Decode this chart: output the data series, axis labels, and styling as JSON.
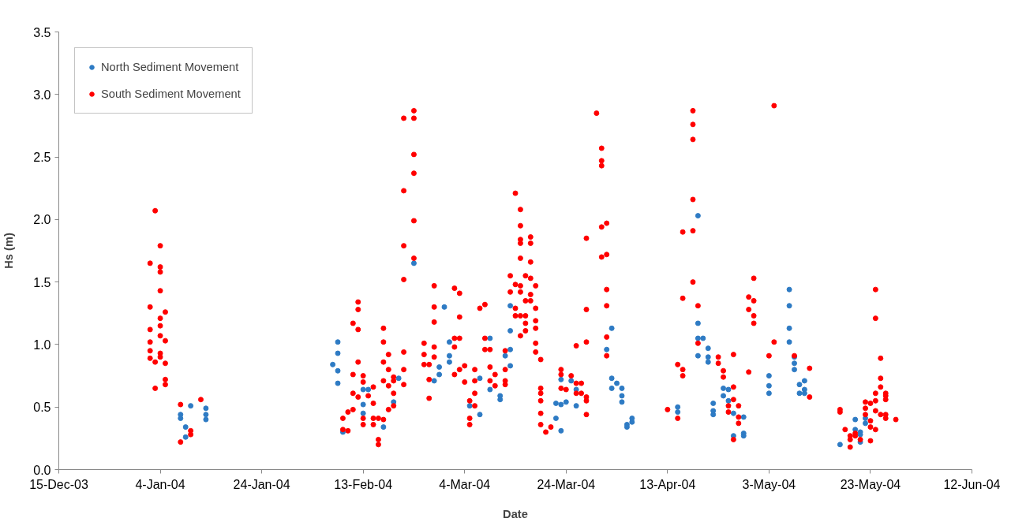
{
  "chart_data": {
    "type": "scatter",
    "xlabel": "Date",
    "ylabel": "Hs (m)",
    "xlim": [
      "2003-12-15",
      "2004-06-12"
    ],
    "xticks": [
      {
        "value": "2003-12-15",
        "label": "15-Dec-03"
      },
      {
        "value": "2004-01-04",
        "label": "4-Jan-04"
      },
      {
        "value": "2004-01-24",
        "label": "24-Jan-04"
      },
      {
        "value": "2004-02-13",
        "label": "13-Feb-04"
      },
      {
        "value": "2004-03-04",
        "label": "4-Mar-04"
      },
      {
        "value": "2004-03-24",
        "label": "24-Mar-04"
      },
      {
        "value": "2004-04-13",
        "label": "13-Apr-04"
      },
      {
        "value": "2004-05-03",
        "label": "3-May-04"
      },
      {
        "value": "2004-05-23",
        "label": "23-May-04"
      },
      {
        "value": "2004-06-12",
        "label": "12-Jun-04"
      }
    ],
    "ylim": [
      0,
      3.5
    ],
    "yticks": [
      {
        "value": 0,
        "label": "0.0"
      },
      {
        "value": 0.5,
        "label": "0.5"
      },
      {
        "value": 1,
        "label": "1.0"
      },
      {
        "value": 1.5,
        "label": "1.5"
      },
      {
        "value": 2,
        "label": "2.0"
      },
      {
        "value": 2.5,
        "label": "2.5"
      },
      {
        "value": 3,
        "label": "3.0"
      },
      {
        "value": 3.5,
        "label": "3.5"
      }
    ],
    "grid": false,
    "legend": "top left",
    "marker": "circle",
    "series": [
      {
        "name": "North Sediment Movement",
        "color": "#2e7bc4",
        "x": [
          "2004-01-10",
          "2004-01-08",
          "2004-01-08",
          "2004-01-09",
          "2004-01-09",
          "2004-01-13",
          "2004-01-13",
          "2004-01-13",
          "2004-02-08",
          "2004-02-08",
          "2004-02-07",
          "2004-02-08",
          "2004-02-08",
          "2004-02-09",
          "2004-02-13",
          "2004-02-14",
          "2004-02-13",
          "2004-02-13",
          "2004-02-17",
          "2004-02-19",
          "2004-02-20",
          "2004-02-23",
          "2004-02-28",
          "2004-02-28",
          "2004-02-27",
          "2004-02-29",
          "2004-03-01",
          "2004-03-01",
          "2004-03-01",
          "2004-03-07",
          "2004-03-05",
          "2004-03-07",
          "2004-03-09",
          "2004-03-09",
          "2004-03-11",
          "2004-03-11",
          "2004-03-13",
          "2004-03-12",
          "2004-03-13",
          "2004-03-13",
          "2004-03-13",
          "2004-03-22",
          "2004-03-23",
          "2004-03-24",
          "2004-03-22",
          "2004-03-23",
          "2004-03-23",
          "2004-03-25",
          "2004-03-26",
          "2004-03-26",
          "2004-04-02",
          "2004-04-01",
          "2004-04-02",
          "2004-04-02",
          "2004-04-03",
          "2004-04-04",
          "2004-04-04",
          "2004-04-04",
          "2004-04-05",
          "2004-04-06",
          "2004-04-06",
          "2004-04-05",
          "2004-04-19",
          "2004-04-19",
          "2004-04-19",
          "2004-04-20",
          "2004-04-19",
          "2004-04-21",
          "2004-04-21",
          "2004-04-21",
          "2004-04-15",
          "2004-04-15",
          "2004-04-24",
          "2004-04-25",
          "2004-04-24",
          "2004-04-22",
          "2004-04-22",
          "2004-04-22",
          "2004-04-25",
          "2004-04-26",
          "2004-04-28",
          "2004-04-28",
          "2004-04-26",
          "2004-04-28",
          "2004-05-03",
          "2004-05-03",
          "2004-05-03",
          "2004-05-07",
          "2004-05-07",
          "2004-05-07",
          "2004-05-07",
          "2004-05-08",
          "2004-05-08",
          "2004-05-08",
          "2004-05-10",
          "2004-05-09",
          "2004-05-10",
          "2004-05-09",
          "2004-05-10",
          "2004-05-17",
          "2004-05-20",
          "2004-05-20",
          "2004-05-22",
          "2004-05-22",
          "2004-05-21",
          "2004-05-21",
          "2004-05-21"
        ],
        "values": [
          0.51,
          0.44,
          0.41,
          0.34,
          0.26,
          0.49,
          0.44,
          0.4,
          1.02,
          0.93,
          0.84,
          0.79,
          0.69,
          0.3,
          0.64,
          0.64,
          0.52,
          0.45,
          0.34,
          0.54,
          0.73,
          1.65,
          0.82,
          0.76,
          0.71,
          1.3,
          1.02,
          0.91,
          0.86,
          0.73,
          0.51,
          0.44,
          1.05,
          0.64,
          0.59,
          0.56,
          0.96,
          0.91,
          0.83,
          1.11,
          1.31,
          0.53,
          0.52,
          0.54,
          0.41,
          0.31,
          0.72,
          0.71,
          0.51,
          0.64,
          1.13,
          0.96,
          0.73,
          0.65,
          0.69,
          0.65,
          0.59,
          0.54,
          0.36,
          0.38,
          0.41,
          0.34,
          2.03,
          1.17,
          1.05,
          1.05,
          0.91,
          0.97,
          0.9,
          0.86,
          0.5,
          0.46,
          0.65,
          0.64,
          0.59,
          0.53,
          0.47,
          0.44,
          0.55,
          0.45,
          0.42,
          0.29,
          0.27,
          0.27,
          0.75,
          0.67,
          0.61,
          1.44,
          1.31,
          1.13,
          1.02,
          0.9,
          0.85,
          0.8,
          0.71,
          0.68,
          0.64,
          0.61,
          0.61,
          0.2,
          0.32,
          0.4,
          0.41,
          0.37,
          0.3,
          0.22,
          0.28
        ]
      },
      {
        "name": "South Sediment Movement",
        "color": "#ff0000",
        "x": [
          "2004-01-03",
          "2004-01-04",
          "2004-01-02",
          "2004-01-04",
          "2004-01-04",
          "2004-01-04",
          "2004-01-02",
          "2004-01-05",
          "2004-01-04",
          "2004-01-04",
          "2004-01-02",
          "2004-01-04",
          "2004-01-05",
          "2004-01-02",
          "2004-01-02",
          "2004-01-04",
          "2004-01-02",
          "2004-01-03",
          "2004-01-05",
          "2004-01-04",
          "2004-01-05",
          "2004-01-05",
          "2004-01-03",
          "2004-01-08",
          "2004-01-08",
          "2004-01-10",
          "2004-01-10",
          "2004-01-12",
          "2004-02-12",
          "2004-02-12",
          "2004-02-11",
          "2004-02-12",
          "2004-02-12",
          "2004-02-11",
          "2004-02-11",
          "2004-02-12",
          "2004-02-11",
          "2004-02-10",
          "2004-02-09",
          "2004-02-09",
          "2004-02-10",
          "2004-02-13",
          "2004-02-13",
          "2004-02-14",
          "2004-02-15",
          "2004-02-15",
          "2004-02-13",
          "2004-02-15",
          "2004-02-16",
          "2004-02-13",
          "2004-02-15",
          "2004-02-16",
          "2004-02-16",
          "2004-02-17",
          "2004-02-17",
          "2004-02-17",
          "2004-02-17",
          "2004-02-18",
          "2004-02-18",
          "2004-02-17",
          "2004-02-18",
          "2004-02-19",
          "2004-02-19",
          "2004-02-19",
          "2004-02-18",
          "2004-02-19",
          "2004-02-21",
          "2004-02-21",
          "2004-02-21",
          "2004-02-21",
          "2004-02-21",
          "2004-02-21",
          "2004-02-21",
          "2004-02-23",
          "2004-02-23",
          "2004-02-23",
          "2004-02-23",
          "2004-02-23",
          "2004-02-23",
          "2004-02-27",
          "2004-02-27",
          "2004-02-27",
          "2004-02-25",
          "2004-02-25",
          "2004-02-27",
          "2004-02-27",
          "2004-02-25",
          "2004-02-26",
          "2004-02-26",
          "2004-02-26",
          "2004-03-02",
          "2004-03-03",
          "2004-03-03",
          "2004-03-02",
          "2004-03-03",
          "2004-03-02",
          "2004-03-04",
          "2004-03-03",
          "2004-03-02",
          "2004-03-04",
          "2004-03-06",
          "2004-03-06",
          "2004-03-06",
          "2004-03-05",
          "2004-03-06",
          "2004-03-05",
          "2004-03-05",
          "2004-03-07",
          "2004-03-08",
          "2004-03-08",
          "2004-03-08",
          "2004-03-09",
          "2004-03-09",
          "2004-03-10",
          "2004-03-09",
          "2004-03-10",
          "2004-03-12",
          "2004-03-12",
          "2004-03-12",
          "2004-03-12",
          "2004-03-13",
          "2004-03-13",
          "2004-03-14",
          "2004-03-15",
          "2004-03-16",
          "2004-03-14",
          "2004-03-15",
          "2004-03-15",
          "2004-03-15",
          "2004-03-15",
          "2004-03-15",
          "2004-03-17",
          "2004-03-17",
          "2004-03-17",
          "2004-03-16",
          "2004-03-17",
          "2004-03-14",
          "2004-03-15",
          "2004-03-18",
          "2004-03-15",
          "2004-03-17",
          "2004-03-16",
          "2004-03-17",
          "2004-03-14",
          "2004-03-18",
          "2004-03-15",
          "2004-03-16",
          "2004-03-16",
          "2004-03-18",
          "2004-03-18",
          "2004-03-18",
          "2004-03-18",
          "2004-03-19",
          "2004-03-19",
          "2004-03-19",
          "2004-03-19",
          "2004-03-19",
          "2004-03-19",
          "2004-03-20",
          "2004-03-21",
          "2004-03-23",
          "2004-03-23",
          "2004-03-23",
          "2004-03-24",
          "2004-03-25",
          "2004-03-26",
          "2004-03-26",
          "2004-03-27",
          "2004-03-27",
          "2004-03-28",
          "2004-03-28",
          "2004-03-28",
          "2004-03-26",
          "2004-03-28",
          "2004-03-28",
          "2004-03-28",
          "2004-03-30",
          "2004-03-31",
          "2004-03-31",
          "2004-03-31",
          "2004-03-31",
          "2004-04-01",
          "2004-03-31",
          "2004-04-01",
          "2004-04-01",
          "2004-04-01",
          "2004-04-01",
          "2004-04-01",
          "2004-04-18",
          "2004-04-18",
          "2004-04-18",
          "2004-04-18",
          "2004-04-16",
          "2004-04-18",
          "2004-04-18",
          "2004-04-16",
          "2004-04-19",
          "2004-04-19",
          "2004-04-15",
          "2004-04-16",
          "2004-04-16",
          "2004-04-13",
          "2004-04-15",
          "2004-04-30",
          "2004-04-29",
          "2004-04-30",
          "2004-04-29",
          "2004-04-30",
          "2004-04-30",
          "2004-05-04",
          "2004-05-04",
          "2004-05-03",
          "2004-04-29",
          "2004-04-23",
          "2004-04-23",
          "2004-04-24",
          "2004-04-24",
          "2004-04-26",
          "2004-04-26",
          "2004-04-26",
          "2004-04-27",
          "2004-04-25",
          "2004-04-25",
          "2004-04-27",
          "2004-04-27",
          "2004-04-26",
          "2004-05-08",
          "2004-05-11",
          "2004-05-11",
          "2004-05-24",
          "2004-05-24",
          "2004-05-25",
          "2004-05-25",
          "2004-05-25",
          "2004-05-26",
          "2004-05-26",
          "2004-05-24",
          "2004-05-26",
          "2004-05-24",
          "2004-05-22",
          "2004-05-23",
          "2004-05-22",
          "2004-05-24",
          "2004-05-25",
          "2004-05-26",
          "2004-05-26",
          "2004-05-28",
          "2004-05-22",
          "2004-05-23",
          "2004-05-23",
          "2004-05-24",
          "2004-05-17",
          "2004-05-17",
          "2004-05-18",
          "2004-05-19",
          "2004-05-20",
          "2004-05-19",
          "2004-05-19",
          "2004-05-21",
          "2004-05-23",
          "2004-05-20"
        ],
        "values": [
          2.07,
          1.79,
          1.65,
          1.62,
          1.58,
          1.43,
          1.3,
          1.26,
          1.21,
          1.15,
          1.12,
          1.07,
          1.03,
          1.02,
          0.95,
          0.93,
          0.89,
          0.86,
          0.85,
          0.9,
          0.72,
          0.68,
          0.65,
          0.52,
          0.22,
          0.31,
          0.28,
          0.56,
          1.34,
          1.28,
          1.17,
          1.12,
          0.86,
          0.76,
          0.61,
          0.58,
          0.48,
          0.46,
          0.41,
          0.32,
          0.31,
          0.75,
          0.7,
          0.59,
          0.66,
          0.53,
          0.41,
          0.41,
          0.41,
          0.36,
          0.36,
          0.24,
          0.2,
          0.4,
          1.13,
          1.02,
          0.86,
          0.92,
          0.8,
          0.71,
          0.67,
          0.71,
          0.74,
          0.61,
          0.48,
          0.51,
          0.94,
          0.8,
          0.68,
          1.52,
          1.79,
          2.23,
          2.81,
          2.81,
          2.87,
          2.52,
          2.37,
          1.99,
          1.69,
          1.47,
          1.3,
          1.18,
          1.01,
          0.92,
          0.98,
          0.9,
          0.84,
          0.84,
          0.72,
          0.57,
          1.45,
          1.41,
          1.22,
          1.05,
          1.05,
          0.98,
          0.83,
          0.8,
          0.76,
          0.7,
          0.8,
          0.71,
          0.61,
          0.55,
          0.51,
          0.36,
          0.41,
          1.29,
          1.32,
          1.05,
          0.96,
          0.96,
          0.82,
          0.76,
          0.71,
          0.67,
          0.71,
          0.68,
          0.8,
          0.95,
          1.55,
          1.42,
          1.23,
          1.07,
          1.11,
          2.21,
          2.08,
          1.95,
          1.84,
          1.81,
          1.69,
          1.86,
          1.81,
          1.66,
          1.55,
          1.53,
          1.48,
          1.47,
          1.47,
          1.42,
          1.4,
          1.35,
          1.35,
          1.29,
          1.29,
          1.23,
          1.23,
          1.17,
          1.19,
          1.13,
          1.01,
          0.94,
          0.88,
          0.65,
          0.61,
          0.55,
          0.45,
          0.36,
          0.3,
          0.34,
          0.76,
          0.8,
          0.65,
          0.64,
          0.75,
          0.69,
          0.61,
          0.69,
          0.61,
          0.58,
          0.55,
          0.44,
          0.99,
          1.85,
          1.28,
          1.02,
          2.85,
          2.57,
          2.47,
          2.43,
          1.94,
          1.97,
          1.7,
          1.72,
          1.44,
          1.31,
          1.06,
          0.91,
          2.87,
          2.76,
          2.64,
          2.16,
          1.9,
          1.91,
          1.5,
          1.37,
          1.31,
          1.01,
          0.84,
          0.8,
          0.75,
          0.48,
          0.41,
          1.53,
          1.38,
          1.35,
          1.28,
          1.23,
          1.17,
          2.91,
          1.02,
          0.91,
          0.78,
          0.9,
          0.85,
          0.79,
          0.74,
          0.92,
          0.66,
          0.56,
          0.51,
          0.51,
          0.46,
          0.42,
          0.37,
          0.24,
          0.91,
          0.81,
          0.58,
          1.44,
          1.21,
          0.89,
          0.73,
          0.66,
          0.61,
          0.59,
          0.61,
          0.56,
          0.55,
          0.54,
          0.53,
          0.49,
          0.47,
          0.44,
          0.44,
          0.41,
          0.4,
          0.44,
          0.39,
          0.34,
          0.32,
          0.48,
          0.46,
          0.32,
          0.27,
          0.27,
          0.24,
          0.18,
          0.24,
          0.23,
          0.29
        ]
      }
    ]
  }
}
